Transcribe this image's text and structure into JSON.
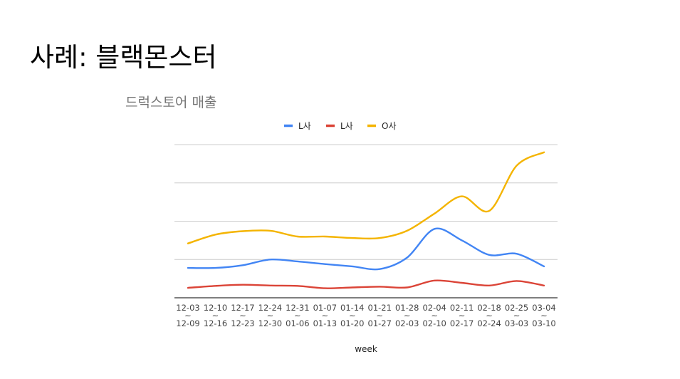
{
  "slide": {
    "title": "사례: 블랙몬스터"
  },
  "chart_data": {
    "type": "line",
    "title": "드럭스토어 매출",
    "xlabel": "week",
    "ylabel": "",
    "categories": [
      [
        "12-03",
        "~",
        "12-09"
      ],
      [
        "12-10",
        "~",
        "12-16"
      ],
      [
        "12-17",
        "~",
        "12-23"
      ],
      [
        "12-24",
        "~",
        "12-30"
      ],
      [
        "12-31",
        "~",
        "01-06"
      ],
      [
        "01-07",
        "~",
        "01-13"
      ],
      [
        "01-14",
        "~",
        "01-20"
      ],
      [
        "01-21",
        "~",
        "01-27"
      ],
      [
        "01-28",
        "~",
        "02-03"
      ],
      [
        "02-04",
        "~",
        "02-10"
      ],
      [
        "02-11",
        "~",
        "02-17"
      ],
      [
        "02-18",
        "~",
        "02-24"
      ],
      [
        "02-25",
        "~",
        "03-03"
      ],
      [
        "03-04",
        "~",
        "03-10"
      ]
    ],
    "ylim": [
      0,
      4
    ],
    "y_gridlines": [
      1,
      2,
      3,
      4
    ],
    "y_tick_labels_shown": false,
    "legend_position": "top",
    "series": [
      {
        "name": "L사",
        "color": "#4285f4",
        "values": [
          0.78,
          0.78,
          0.85,
          1.0,
          0.95,
          0.88,
          0.82,
          0.75,
          1.05,
          1.8,
          1.5,
          1.12,
          1.15,
          0.82
        ]
      },
      {
        "name": "L사",
        "color": "#db4437",
        "values": [
          0.26,
          0.31,
          0.34,
          0.32,
          0.31,
          0.25,
          0.27,
          0.29,
          0.27,
          0.45,
          0.39,
          0.32,
          0.44,
          0.32
        ]
      },
      {
        "name": "O사",
        "color": "#f4b400",
        "values": [
          1.42,
          1.65,
          1.74,
          1.75,
          1.6,
          1.6,
          1.56,
          1.56,
          1.75,
          2.2,
          2.65,
          2.27,
          3.45,
          3.8
        ]
      }
    ]
  }
}
